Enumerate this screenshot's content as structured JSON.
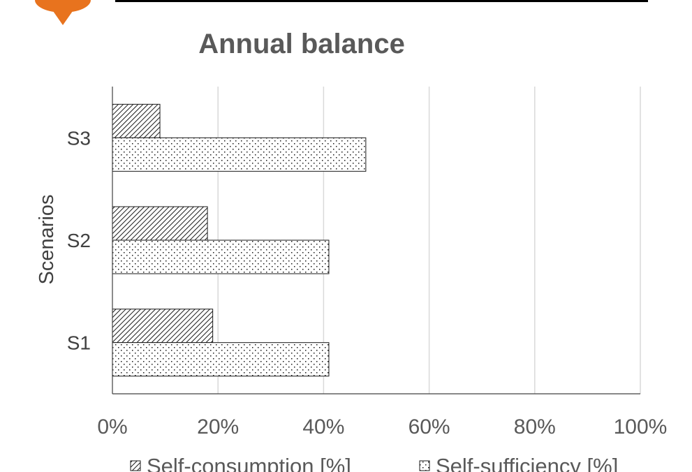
{
  "chart_data": {
    "type": "bar",
    "orientation": "horizontal",
    "title": "Annual balance",
    "ylabel": "Scenarios",
    "xlabel": "",
    "categories": [
      "S1",
      "S2",
      "S3"
    ],
    "series": [
      {
        "name": "Self-consumption [%]",
        "values": [
          19,
          18,
          9
        ],
        "pattern": "diagonal-hatch"
      },
      {
        "name": "Self-sufficiency [%]",
        "values": [
          41,
          41,
          48
        ],
        "pattern": "dots"
      }
    ],
    "xlim": [
      0,
      100
    ],
    "x_ticks": [
      "0%",
      "20%",
      "40%",
      "60%",
      "80%",
      "100%"
    ],
    "grid": true,
    "legend_position": "bottom"
  },
  "colors": {
    "logo": "#e8731e",
    "bar_stroke": "#1a1a1a",
    "grid": "#d9d9d9",
    "text": "#595959"
  },
  "logo": {
    "icon": "sun-logo-icon"
  }
}
